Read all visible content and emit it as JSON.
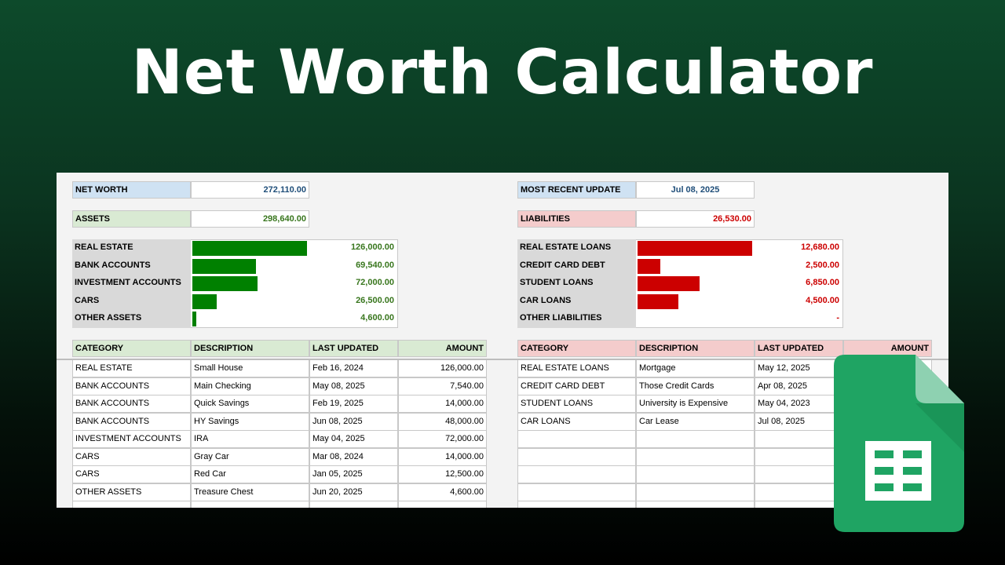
{
  "title": "Net Worth Calculator",
  "assets_side": {
    "top": [
      {
        "label": "NET WORTH",
        "value": "272,110.00"
      },
      {
        "label": "ASSETS",
        "value": "298,640.00"
      }
    ],
    "summary": [
      {
        "label": "REAL ESTATE",
        "value": 126000,
        "value_label": "126,000.00"
      },
      {
        "label": "BANK ACCOUNTS",
        "value": 69540,
        "value_label": "69,540.00"
      },
      {
        "label": "INVESTMENT ACCOUNTS",
        "value": 72000,
        "value_label": "72,000.00"
      },
      {
        "label": "CARS",
        "value": 26500,
        "value_label": "26,500.00"
      },
      {
        "label": "OTHER ASSETS",
        "value": 4600,
        "value_label": "4,600.00"
      }
    ],
    "table": {
      "header": [
        "CATEGORY",
        "DESCRIPTION",
        "LAST UPDATED",
        "AMOUNT"
      ],
      "rows": [
        [
          "REAL ESTATE",
          "Small House",
          "Feb 16, 2024",
          "126,000.00"
        ],
        [
          "BANK ACCOUNTS",
          "Main Checking",
          "May 08, 2025",
          "7,540.00"
        ],
        [
          "BANK ACCOUNTS",
          "Quick Savings",
          "Feb 19, 2025",
          "14,000.00"
        ],
        [
          "BANK ACCOUNTS",
          "HY Savings",
          "Jun 08, 2025",
          "48,000.00"
        ],
        [
          "INVESTMENT ACCOUNTS",
          "IRA",
          "May 04, 2025",
          "72,000.00"
        ],
        [
          "CARS",
          "Gray Car",
          "Mar 08, 2024",
          "14,000.00"
        ],
        [
          "CARS",
          "Red Car",
          "Jan 05, 2025",
          "12,500.00"
        ],
        [
          "OTHER ASSETS",
          "Treasure Chest",
          "Jun 20, 2025",
          "4,600.00"
        ]
      ]
    }
  },
  "liabilities_side": {
    "top": [
      {
        "label": "MOST RECENT UPDATE",
        "value": "Jul 08, 2025"
      },
      {
        "label": "LIABILITIES",
        "value": "26,530.00"
      }
    ],
    "summary": [
      {
        "label": "REAL ESTATE LOANS",
        "value": 12680,
        "value_label": "12,680.00"
      },
      {
        "label": "CREDIT CARD DEBT",
        "value": 2500,
        "value_label": "2,500.00"
      },
      {
        "label": "STUDENT LOANS",
        "value": 6850,
        "value_label": "6,850.00"
      },
      {
        "label": "CAR LOANS",
        "value": 4500,
        "value_label": "4,500.00"
      },
      {
        "label": "OTHER LIABILITIES",
        "value": 0,
        "value_label": "-"
      }
    ],
    "table": {
      "header": [
        "CATEGORY",
        "DESCRIPTION",
        "LAST UPDATED",
        "AMOUNT"
      ],
      "rows": [
        [
          "REAL ESTATE LOANS",
          "Mortgage",
          "May 12, 2025"
        ],
        [
          "CREDIT CARD DEBT",
          "Those Credit Cards",
          "Apr 08, 2025"
        ],
        [
          "STUDENT LOANS",
          "University is Expensive",
          "May 04, 2023"
        ],
        [
          "CAR LOANS",
          "Car Lease",
          "Jul 08, 2025"
        ]
      ]
    }
  }
}
